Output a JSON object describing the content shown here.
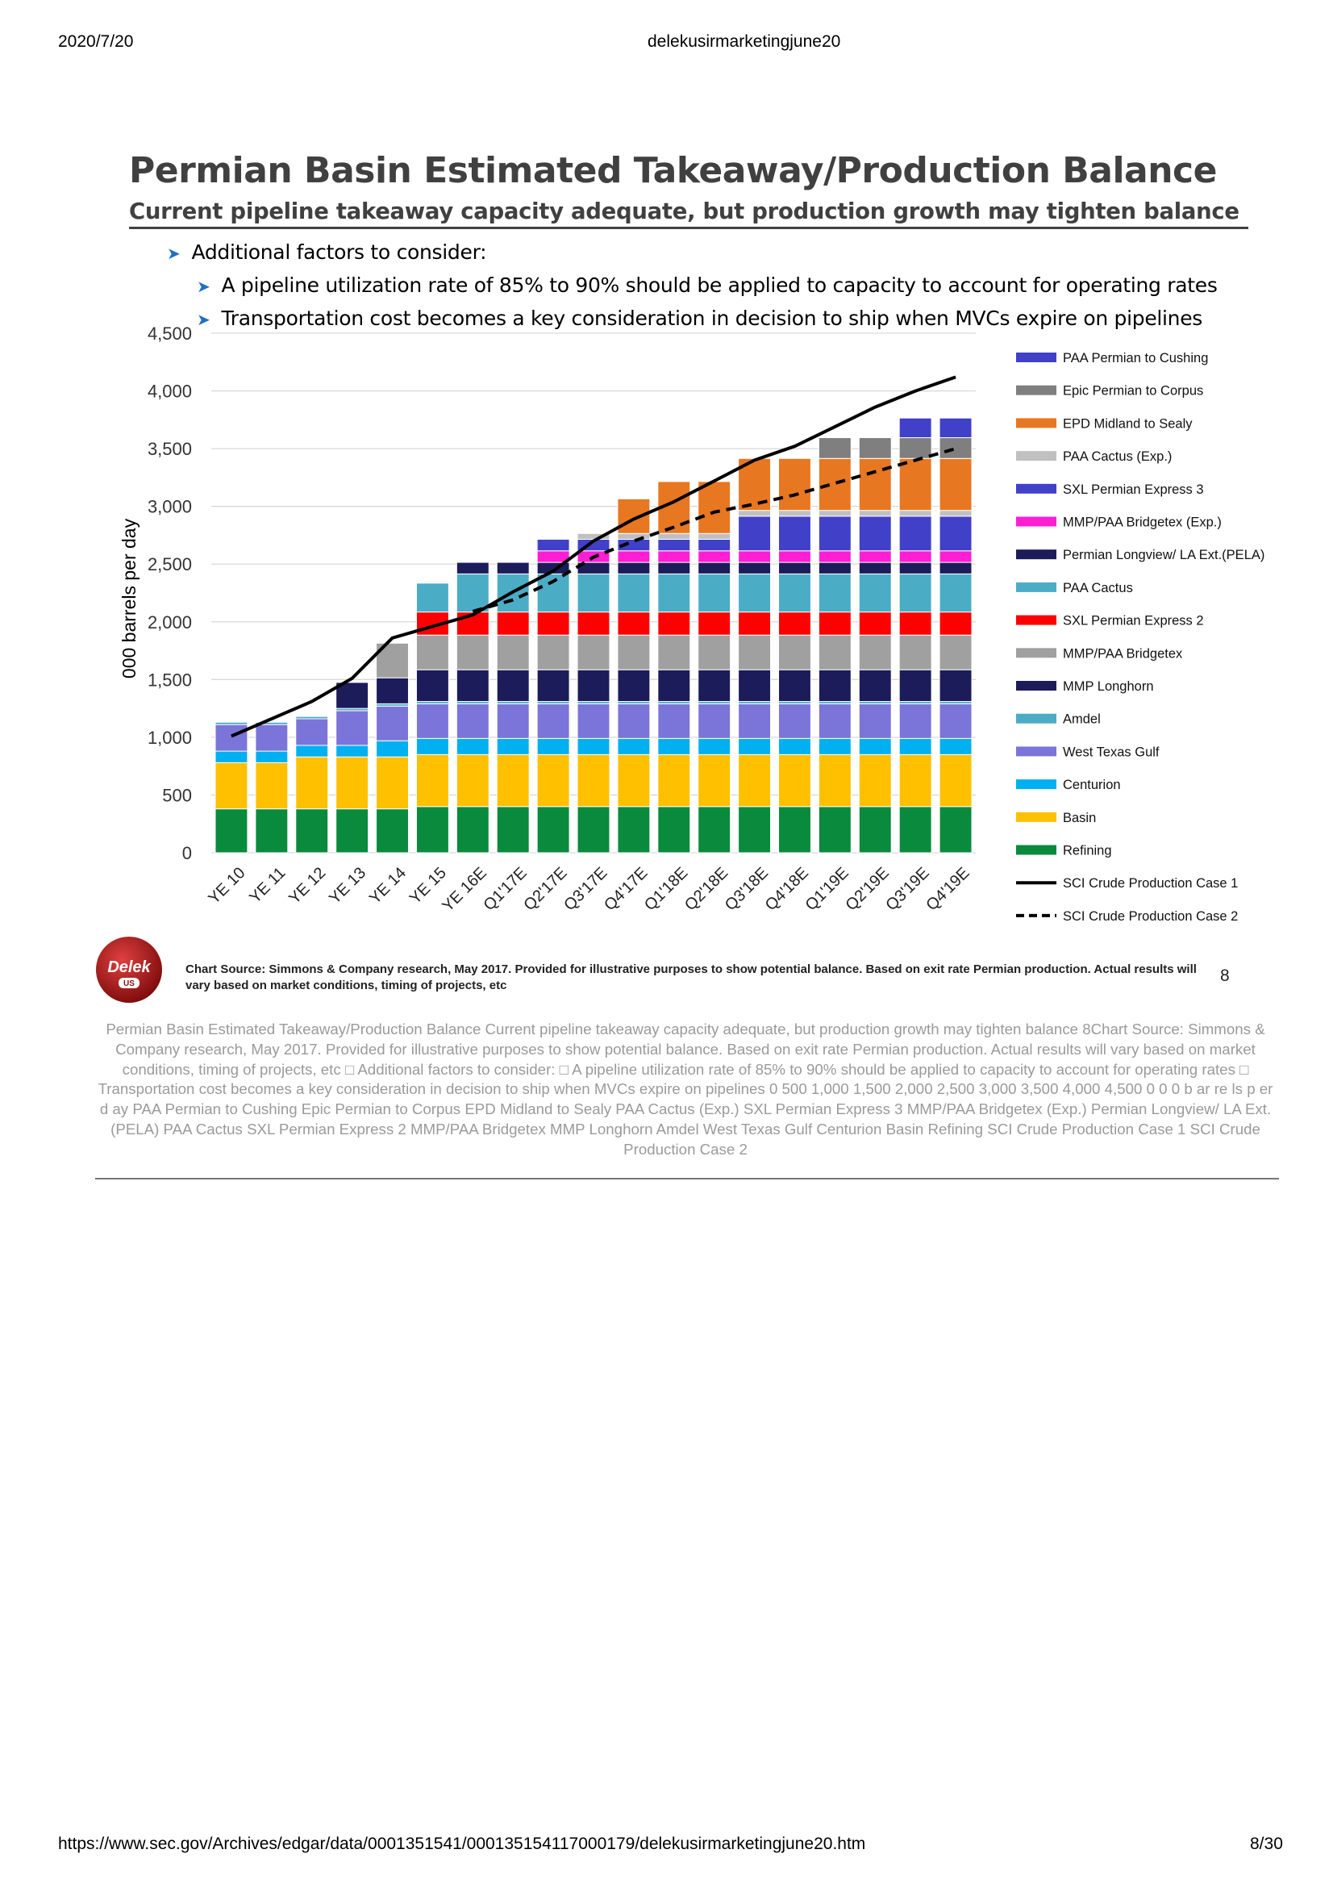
{
  "browser": {
    "date": "2020/7/20",
    "doc_name": "delekusirmarketingjune20",
    "url": "https://www.sec.gov/Archives/edgar/data/0001351541/000135154117000179/delekusirmarketingjune20.htm",
    "page": "8/30"
  },
  "slide": {
    "title": "Permian Basin Estimated Takeaway/Production Balance",
    "subtitle": "Current pipeline takeaway capacity adequate, but production growth may tighten balance",
    "bullet_main": "Additional factors to consider:",
    "bullet_1": "A pipeline utilization rate of 85% to 90% should be applied to capacity to account for operating rates",
    "bullet_2": "Transportation cost becomes a key consideration in decision to ship when MVCs expire on pipelines",
    "source": "Chart Source: Simmons & Company research, May 2017. Provided for illustrative purposes to show potential balance.  Based on exit rate Permian production. Actual results will vary based on market conditions, timing of projects, etc",
    "page_number": "8",
    "logo_text": "Delek",
    "logo_sub": "US"
  },
  "ocr_text": "Permian Basin Estimated Takeaway/Production Balance Current pipeline takeaway capacity adequate, but production growth may tighten balance 8Chart Source: Simmons & Company research, May 2017. Provided for illustrative purposes to show potential balance. Based on exit rate Permian production. Actual results will vary based on market conditions, timing of projects, etc □ Additional factors to consider: □ A pipeline utilization rate of 85% to 90% should be applied to capacity to account for operating rates □ Transportation cost becomes a key consideration in decision to ship when MVCs expire on pipelines  0 500 1,000 1,500 2,000 2,500 3,000 3,500 4,000 4,500 0 0 0 b ar re ls p er  d ay PAA Permian to Cushing Epic Permian to Corpus EPD Midland to Sealy PAA Cactus (Exp.) SXL Permian Express 3 MMP/PAA Bridgetex (Exp.) Permian Longview/ LA Ext.(PELA) PAA Cactus SXL Permian Express 2 MMP/PAA Bridgetex MMP Longhorn Amdel West Texas Gulf Centurion Basin Refining SCI Crude Production Case 1 SCI Crude Production Case 2",
  "chart_data": {
    "type": "bar",
    "stacked": true,
    "ylabel": "000 barrels per day",
    "ylim": [
      0,
      4500
    ],
    "yticks": [
      "0",
      "500",
      "1,000",
      "1,500",
      "2,000",
      "2,500",
      "3,000",
      "3,500",
      "4,000",
      "4,500"
    ],
    "categories": [
      "YE 10",
      "YE 11",
      "YE 12",
      "YE 13",
      "YE 14",
      "YE 15",
      "YE 16E",
      "Q1'17E",
      "Q2'17E",
      "Q3'17E",
      "Q4'17E",
      "Q1'18E",
      "Q2'18E",
      "Q3'18E",
      "Q4'18E",
      "Q1'19E",
      "Q2'19E",
      "Q3'19E",
      "Q4'19E"
    ],
    "grid": true,
    "legend_position": "right",
    "series": [
      {
        "name": "Refining",
        "color": "#0a8a3c",
        "values": [
          380,
          380,
          380,
          380,
          380,
          400,
          400,
          400,
          400,
          400,
          400,
          400,
          400,
          400,
          400,
          400,
          400,
          400,
          400
        ]
      },
      {
        "name": "Basin",
        "color": "#ffc000",
        "values": [
          400,
          400,
          450,
          450,
          450,
          450,
          450,
          450,
          450,
          450,
          450,
          450,
          450,
          450,
          450,
          450,
          450,
          450,
          450
        ]
      },
      {
        "name": "Centurion",
        "color": "#00b0f0",
        "values": [
          100,
          100,
          100,
          100,
          140,
          140,
          140,
          140,
          140,
          140,
          140,
          140,
          140,
          140,
          140,
          140,
          140,
          140,
          140
        ]
      },
      {
        "name": "West Texas Gulf",
        "color": "#7b74d9",
        "values": [
          230,
          230,
          230,
          300,
          300,
          300,
          300,
          300,
          300,
          300,
          300,
          300,
          300,
          300,
          300,
          300,
          300,
          300,
          300
        ]
      },
      {
        "name": "Amdel",
        "color": "#4bacc6",
        "values": [
          20,
          20,
          20,
          20,
          20,
          20,
          20,
          20,
          20,
          20,
          20,
          20,
          20,
          20,
          20,
          20,
          20,
          20,
          20
        ]
      },
      {
        "name": "MMP Longhorn",
        "color": "#1c1c5a",
        "values": [
          0,
          0,
          0,
          225,
          225,
          275,
          275,
          275,
          275,
          275,
          275,
          275,
          275,
          275,
          275,
          275,
          275,
          275,
          275
        ]
      },
      {
        "name": "MMP/PAA Bridgetex",
        "color": "#a0a0a0",
        "values": [
          0,
          0,
          0,
          0,
          300,
          300,
          300,
          300,
          300,
          300,
          300,
          300,
          300,
          300,
          300,
          300,
          300,
          300,
          300
        ]
      },
      {
        "name": "SXL Permian Express 2",
        "color": "#ff0000",
        "values": [
          0,
          0,
          0,
          0,
          0,
          200,
          200,
          200,
          200,
          200,
          200,
          200,
          200,
          200,
          200,
          200,
          200,
          200,
          200
        ]
      },
      {
        "name": "PAA Cactus",
        "color": "#4bacc6",
        "values": [
          0,
          0,
          0,
          0,
          0,
          250,
          330,
          330,
          330,
          330,
          330,
          330,
          330,
          330,
          330,
          330,
          330,
          330,
          330
        ]
      },
      {
        "name": "Permian Longview/ LA Ext.(PELA)",
        "color": "#1c1c5a",
        "values": [
          0,
          0,
          0,
          0,
          0,
          0,
          100,
          100,
          100,
          100,
          100,
          100,
          100,
          100,
          100,
          100,
          100,
          100,
          100
        ]
      },
      {
        "name": "MMP/PAA Bridgetex (Exp.)",
        "color": "#ff1ed2",
        "values": [
          0,
          0,
          0,
          0,
          0,
          0,
          0,
          0,
          100,
          100,
          100,
          100,
          100,
          100,
          100,
          100,
          100,
          100,
          100
        ]
      },
      {
        "name": "SXL Permian Express 3",
        "color": "#4040c8",
        "values": [
          0,
          0,
          0,
          0,
          0,
          0,
          0,
          0,
          100,
          100,
          100,
          100,
          100,
          300,
          300,
          300,
          300,
          300,
          300
        ]
      },
      {
        "name": "PAA Cactus (Exp.)",
        "color": "#c0c0c0",
        "values": [
          0,
          0,
          0,
          0,
          0,
          0,
          0,
          0,
          0,
          50,
          50,
          50,
          50,
          50,
          50,
          50,
          50,
          50,
          50
        ]
      },
      {
        "name": "EPD Midland to Sealy",
        "color": "#e87722",
        "values": [
          0,
          0,
          0,
          0,
          0,
          0,
          0,
          0,
          0,
          0,
          300,
          450,
          450,
          450,
          450,
          450,
          450,
          450,
          450
        ]
      },
      {
        "name": "Epic Permian to Corpus",
        "color": "#7f7f7f",
        "values": [
          0,
          0,
          0,
          0,
          0,
          0,
          0,
          0,
          0,
          0,
          0,
          0,
          0,
          0,
          0,
          180,
          180,
          180,
          180
        ]
      },
      {
        "name": "PAA Permian to Cushing",
        "color": "#4040c8",
        "values": [
          0,
          0,
          0,
          0,
          0,
          0,
          0,
          0,
          0,
          0,
          0,
          0,
          0,
          0,
          0,
          0,
          0,
          170,
          170
        ]
      }
    ],
    "lines": [
      {
        "name": "SCI Crude Production Case 1",
        "style": "solid",
        "color": "#000000",
        "values": [
          1010,
          1160,
          1310,
          1510,
          1860,
          1960,
          2060,
          2260,
          2440,
          2700,
          2890,
          3040,
          3220,
          3400,
          3520,
          3690,
          3860,
          4000,
          4120
        ]
      },
      {
        "name": "SCI Crude Production Case 2",
        "style": "dashed",
        "color": "#000000",
        "values": [
          null,
          null,
          null,
          null,
          null,
          null,
          2090,
          2190,
          2350,
          2560,
          2700,
          2820,
          2950,
          3020,
          3100,
          3200,
          3300,
          3400,
          3500
        ]
      }
    ]
  }
}
